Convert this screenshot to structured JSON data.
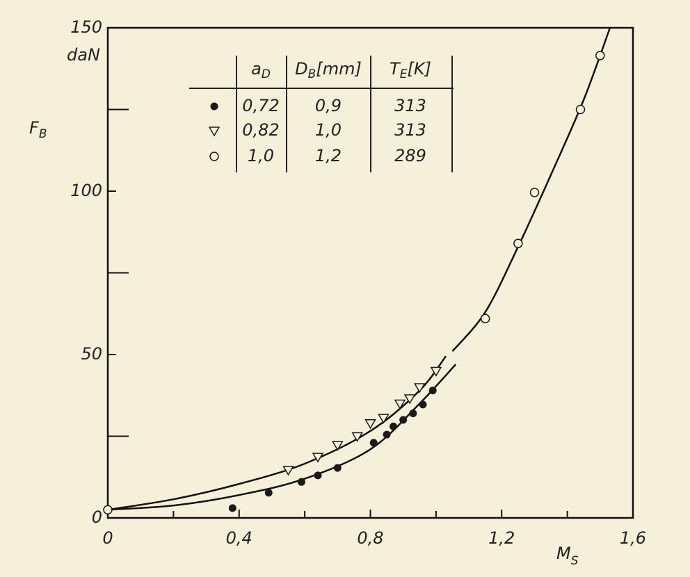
{
  "chart_data": {
    "type": "scatter",
    "unit_label": "daN",
    "ylabel": {
      "main": "F",
      "sub": "B"
    },
    "xlabel": {
      "main": "M",
      "sub": "S"
    },
    "xlim": [
      0,
      1.6
    ],
    "ylim": [
      0,
      150
    ],
    "xticks": [
      0,
      {
        "value": 0.4,
        "label": "0,4"
      },
      {
        "value": 0.8,
        "label": "0,8"
      },
      {
        "value": 1.2,
        "label": "1,2"
      },
      {
        "value": 1.6,
        "label": "1,6"
      }
    ],
    "yticks": [
      0,
      50,
      100,
      150
    ],
    "xminorticks": [
      0.2,
      0.6,
      1.0,
      1.4
    ],
    "yminorticks": [
      25,
      75,
      125
    ],
    "legend_table": {
      "headers": [
        {
          "main": "a",
          "sub": "D"
        },
        {
          "main": "D",
          "sub": "B",
          "suffix": "[mm]"
        },
        {
          "main": "T",
          "sub": "E",
          "suffix": "[K]"
        }
      ],
      "rows": [
        [
          "0,72",
          "0,9",
          "313"
        ],
        [
          "0,82",
          "1,0",
          "313"
        ],
        [
          "1,0",
          "1,2",
          "289"
        ]
      ]
    },
    "series": [
      {
        "marker": "filled-circle",
        "color": "#1a1a1a",
        "x": [
          0.0,
          0.38,
          0.49,
          0.59,
          0.64,
          0.7,
          0.81,
          0.85,
          0.87,
          0.9,
          0.93,
          0.96,
          0.99
        ],
        "values": [
          2.5,
          3.0,
          7.7,
          11,
          13,
          15.3,
          23,
          25.5,
          28,
          30,
          32,
          34.7,
          39
        ]
      },
      {
        "marker": "open-triangle-down",
        "color": "#1a1a1a",
        "x": [
          0.55,
          0.64,
          0.7,
          0.76,
          0.8,
          0.84,
          0.89,
          0.92,
          0.95,
          1.0
        ],
        "values": [
          14.7,
          18.7,
          22.3,
          25,
          29,
          30.6,
          35,
          36.6,
          40,
          45
        ]
      },
      {
        "marker": "open-circle",
        "color": "#1a1a1a",
        "x": [
          0.0,
          1.15,
          1.25,
          1.3,
          1.44,
          1.5
        ],
        "values": [
          2.5,
          61,
          84,
          99.6,
          125,
          141.5
        ]
      }
    ],
    "curves": [
      {
        "color": "#111",
        "x": [
          0,
          0.2,
          0.4,
          0.6,
          0.8,
          0.95,
          1.03,
          null,
          1.05,
          1.15,
          1.25,
          1.35,
          1.45,
          1.53
        ],
        "values": [
          2.5,
          5.7,
          10.4,
          16.6,
          26.6,
          39,
          49.5,
          null,
          51,
          63,
          83,
          105,
          128,
          150
        ]
      },
      {
        "color": "#111",
        "x": [
          0,
          0.2,
          0.4,
          0.6,
          0.8,
          0.95,
          1.06
        ],
        "values": [
          2.5,
          3.8,
          7,
          12,
          21,
          35,
          47
        ]
      }
    ]
  }
}
